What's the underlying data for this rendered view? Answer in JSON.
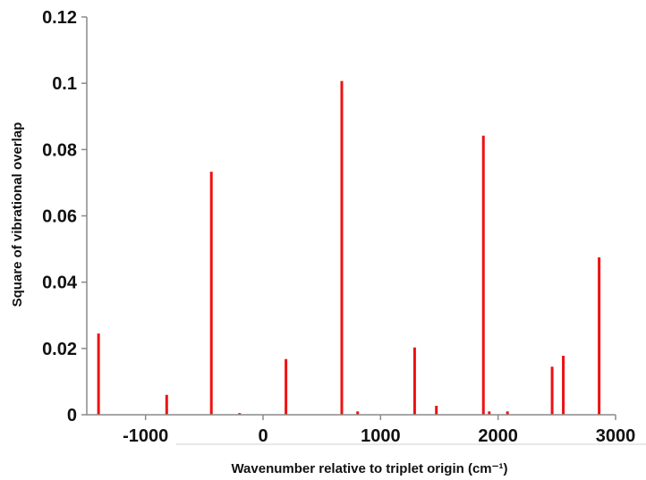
{
  "chart_data": {
    "type": "bar",
    "title": "",
    "xlabel": "Wavenumber relative to triplet origin (cm⁻¹)",
    "ylabel": "Square of vibrational overlap",
    "xlim": [
      -1500,
      3000
    ],
    "ylim": [
      0,
      0.12
    ],
    "x_ticks": [
      -1000,
      0,
      1000,
      2000,
      3000
    ],
    "x_tick_labels": [
      "-1000",
      "0",
      "1000",
      "2000",
      "3000"
    ],
    "y_ticks": [
      0,
      0.02,
      0.04,
      0.06,
      0.08,
      0.1,
      0.12
    ],
    "y_tick_labels": [
      "0",
      "0.02",
      "0.04",
      "0.06",
      "0.08",
      "0.1",
      "0.12"
    ],
    "grid": false,
    "legend": "none",
    "series": [
      {
        "color": "#ee1111",
        "points": [
          {
            "x": -1400,
            "y": 0.0245
          },
          {
            "x": -820,
            "y": 0.006
          },
          {
            "x": -440,
            "y": 0.0733
          },
          {
            "x": -200,
            "y": 0.0005
          },
          {
            "x": 195,
            "y": 0.0168
          },
          {
            "x": 670,
            "y": 0.1007
          },
          {
            "x": 805,
            "y": 0.001
          },
          {
            "x": 1290,
            "y": 0.0203
          },
          {
            "x": 1475,
            "y": 0.0027
          },
          {
            "x": 1875,
            "y": 0.0842
          },
          {
            "x": 1925,
            "y": 0.001
          },
          {
            "x": 2080,
            "y": 0.001
          },
          {
            "x": 2460,
            "y": 0.0145
          },
          {
            "x": 2555,
            "y": 0.0178
          },
          {
            "x": 2860,
            "y": 0.0475
          }
        ]
      }
    ]
  }
}
